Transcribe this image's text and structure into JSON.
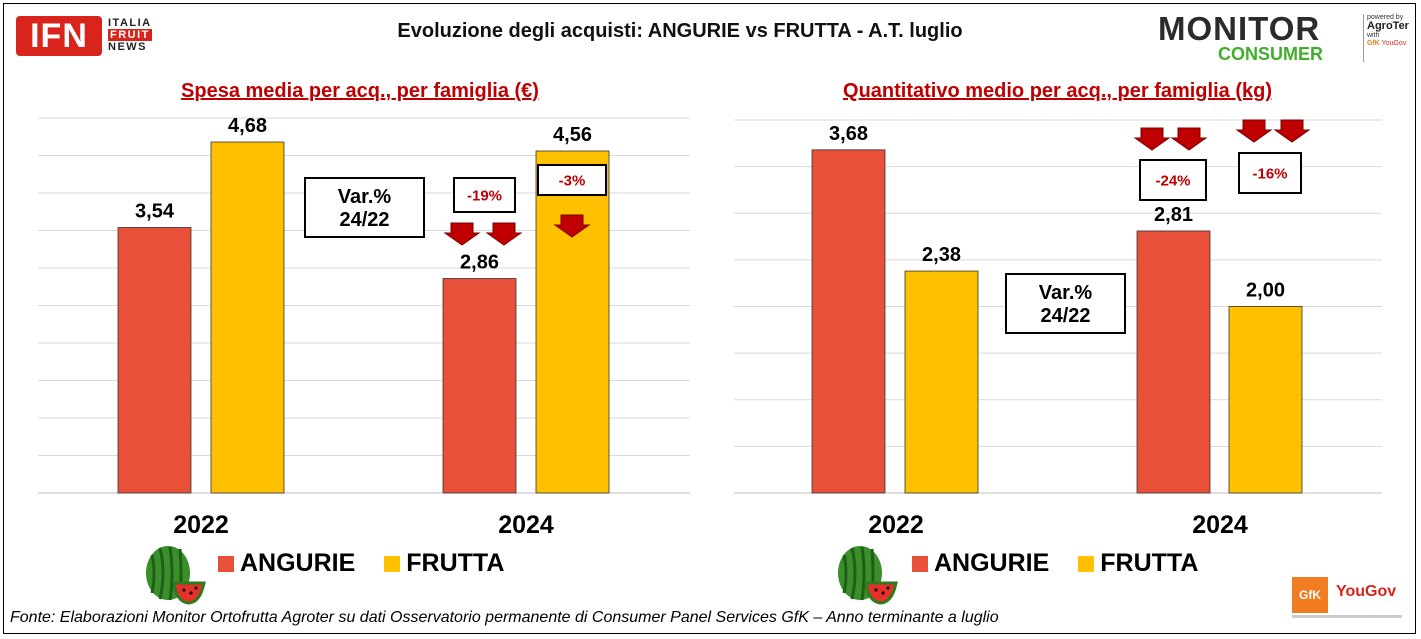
{
  "header": {
    "title": "Evoluzione degli acquisti: ANGURIE vs FRUTTA  - A.T. luglio",
    "ifn_logo": {
      "letters": "IFN",
      "line1": "ITALIA",
      "line2": "FRUIT",
      "line3": "NEWS"
    },
    "monitor_logo": {
      "word1": "MONITOR",
      "word2": "CONSUMER",
      "powered_by": "powered by",
      "partner": "AgroTer",
      "with": "with",
      "gfk": "GfK",
      "yougov": "YouGov"
    }
  },
  "colors": {
    "angurie": "#e8503a",
    "frutta": "#ffc000",
    "title_red": "#c00000",
    "arrow_red": "#c00000"
  },
  "chart_data": [
    {
      "type": "bar",
      "title": "Spesa media per acq., per famiglia (€)",
      "categories": [
        "2022",
        "2024"
      ],
      "series": [
        {
          "name": "ANGURIE",
          "values": [
            3.54,
            2.86
          ],
          "labels": [
            "3,54",
            "2,86"
          ]
        },
        {
          "name": "FRUTTA",
          "values": [
            4.68,
            4.56
          ],
          "labels": [
            "4,68",
            "4,56"
          ]
        }
      ],
      "ylim": [
        0,
        5
      ],
      "grid": true,
      "var_box": "Var.%\n24/22",
      "annotations": {
        "ANGURIE": "-19%",
        "FRUTTA": "-3%"
      }
    },
    {
      "type": "bar",
      "title": "Quantitativo medio per acq., per famiglia (kg)",
      "categories": [
        "2022",
        "2024"
      ],
      "series": [
        {
          "name": "ANGURIE",
          "values": [
            3.68,
            2.81
          ],
          "labels": [
            "3,68",
            "2,81"
          ]
        },
        {
          "name": "FRUTTA",
          "values": [
            2.38,
            2.0
          ],
          "labels": [
            "2,38",
            "2,00"
          ]
        }
      ],
      "ylim": [
        0,
        4
      ],
      "grid": true,
      "var_box": "Var.%\n24/22",
      "annotations": {
        "ANGURIE": "-24%",
        "FRUTTA": "-16%"
      }
    }
  ],
  "legend": {
    "angurie": "ANGURIE",
    "frutta": "FRUTTA"
  },
  "footer": "Fonte: Elaborazioni Monitor Ortofrutta Agroter su dati Osservatorio permanente di Consumer Panel Services GfK – Anno terminante a luglio",
  "brand": {
    "gfk": "GfK",
    "yougov": "YouGov"
  }
}
